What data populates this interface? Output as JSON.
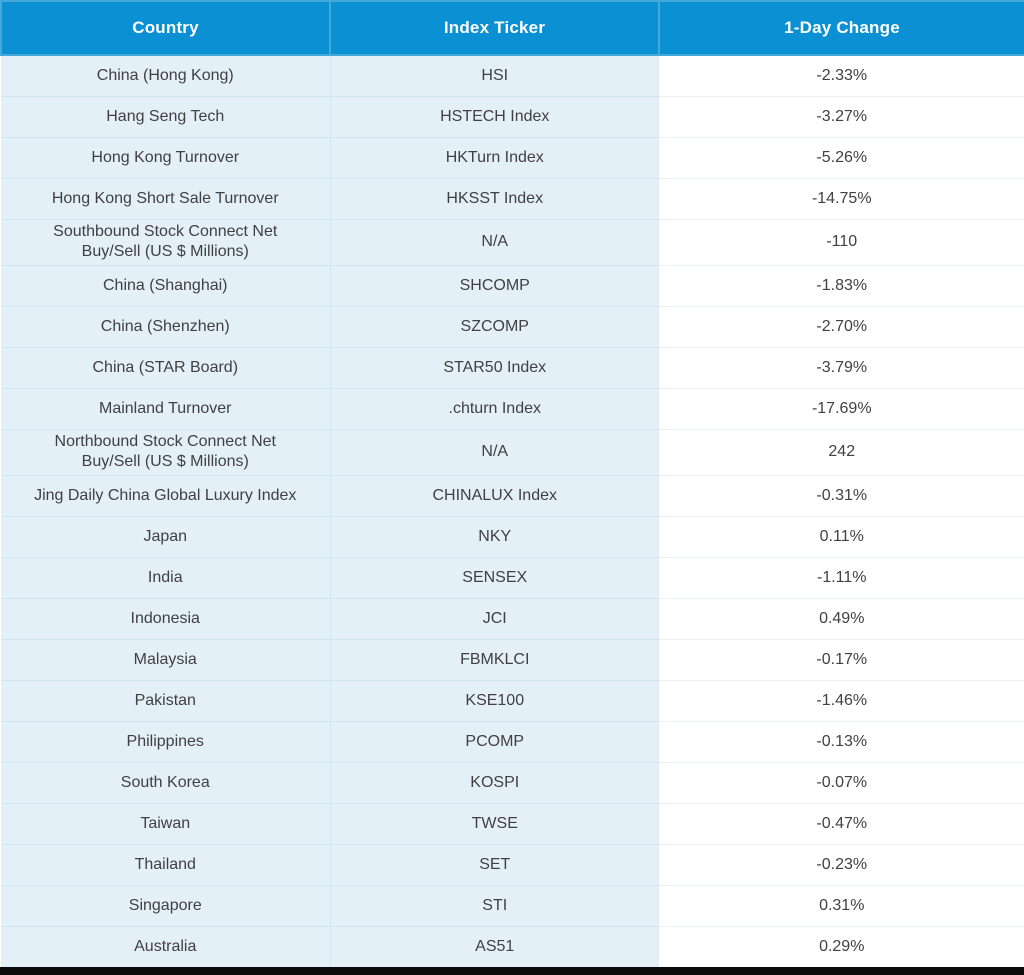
{
  "colors": {
    "header_bg": "#0a90d3",
    "header_divider": "#45a9dc",
    "header_text": "#ffffff",
    "row_bg": "#e3f0f7",
    "change_column_bg": "#ffffff",
    "row_divider": "#d0e6f1",
    "body_text": "#414042",
    "bottom_bar": "#0b0b0b"
  },
  "chart_data": {
    "type": "table",
    "columns": [
      "Country",
      "Index Ticker",
      "1-Day Change"
    ],
    "rows": [
      [
        "China (Hong Kong)",
        "HSI",
        "-2.33%"
      ],
      [
        "Hang Seng Tech",
        "HSTECH Index",
        "-3.27%"
      ],
      [
        "Hong Kong Turnover",
        "HKTurn Index",
        "-5.26%"
      ],
      [
        "Hong Kong Short Sale Turnover",
        "HKSST Index",
        "-14.75%"
      ],
      [
        "Southbound Stock Connect Net\nBuy/Sell (US $ Millions)",
        "N/A",
        "-110"
      ],
      [
        "China (Shanghai)",
        "SHCOMP",
        "-1.83%"
      ],
      [
        "China (Shenzhen)",
        "SZCOMP",
        "-2.70%"
      ],
      [
        "China (STAR Board)",
        "STAR50 Index",
        "-3.79%"
      ],
      [
        "Mainland Turnover",
        ".chturn Index",
        "-17.69%"
      ],
      [
        "Northbound Stock Connect Net\nBuy/Sell (US $ Millions)",
        "N/A",
        "242"
      ],
      [
        "Jing Daily China Global Luxury Index",
        "CHINALUX Index",
        "-0.31%"
      ],
      [
        "Japan",
        "NKY",
        "0.11%"
      ],
      [
        "India",
        "SENSEX",
        "-1.11%"
      ],
      [
        "Indonesia",
        "JCI",
        "0.49%"
      ],
      [
        "Malaysia",
        "FBMKLCI",
        "-0.17%"
      ],
      [
        "Pakistan",
        "KSE100",
        "-1.46%"
      ],
      [
        "Philippines",
        "PCOMP",
        "-0.13%"
      ],
      [
        "South Korea",
        "KOSPI",
        "-0.07%"
      ],
      [
        "Taiwan",
        "TWSE",
        "-0.47%"
      ],
      [
        "Thailand",
        "SET",
        "-0.23%"
      ],
      [
        "Singapore",
        "STI",
        "0.31%"
      ],
      [
        "Australia",
        "AS51",
        "0.29%"
      ]
    ]
  }
}
